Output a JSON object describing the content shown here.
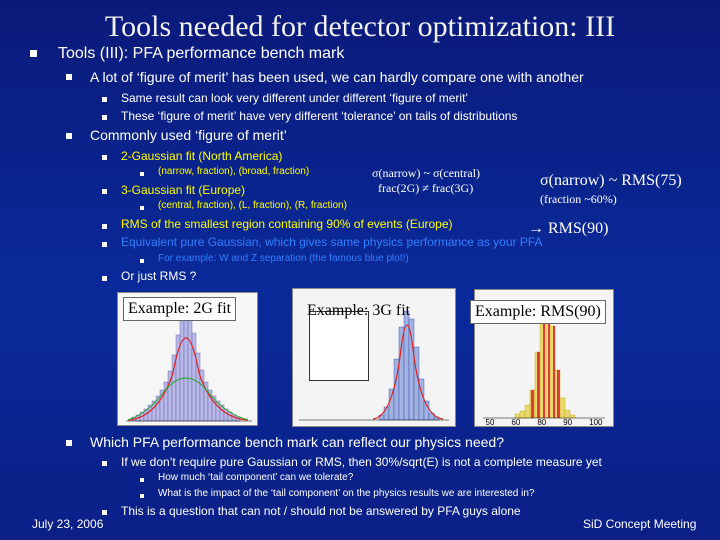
{
  "title": "Tools needed for detector optimization: III",
  "bullets": {
    "l1_a": "Tools (III): PFA performance bench mark",
    "l2_a": "A lot of ‘figure of merit’ has been used, we can hardly compare one with another",
    "l3_a": "Same result can look very different under different ‘figure of merit’",
    "l3_b": "These ‘figure of merit’ have very different ‘tolerance’ on tails of distributions",
    "l2_b": "Commonly used ‘figure of merit’",
    "l3_c": "2-Gaussian fit (North America)",
    "l4_c": "(narrow, fraction), (broad, fraction)",
    "l3_d": "3-Gaussian fit (Europe)",
    "l4_d": "(central, fraction), (L, fraction), (R, fraction)",
    "l3_e": "RMS of the smallest region containing 90% of events (Europe)",
    "l3_f": "Equivalent pure Gaussian, which gives same physics performance as your PFA",
    "l4_f": "For example: W and Z separation (the famous blue plot!)",
    "l3_g": "Or just RMS ?",
    "l2_c": "Which PFA performance bench mark can reflect our physics need?",
    "l3_h": "If we don’t require pure Gaussian or RMS, then 30%/sqrt(E) is not a complete measure yet",
    "l4_h1": "How much ‘tail component’ can we tolerate?",
    "l4_h2": "What is the impact of the ‘tail component’ on the physics results we are interested in?",
    "l3_i": "This is a question that can not / should not be answered by PFA guys alone"
  },
  "annotations": {
    "sigma_eq_1": "σ(narrow) ~ σ(central)",
    "sigma_eq_2": "frac(2G) ≠ frac(3G)",
    "rms75": "σ(narrow) ~ RMS(75)",
    "fraction": "(fraction ~60%)",
    "rms90": "→ RMS(90)"
  },
  "examples": {
    "ex1": "Example: 2G fit",
    "ex2": "Example: 3G fit",
    "ex3": "Example: RMS(90)"
  },
  "plot3_ticks": [
    "50",
    "60",
    "80",
    "90",
    "100"
  ],
  "footer": {
    "date": "July 23, 2006",
    "meeting": "SiD Concept Meeting"
  }
}
